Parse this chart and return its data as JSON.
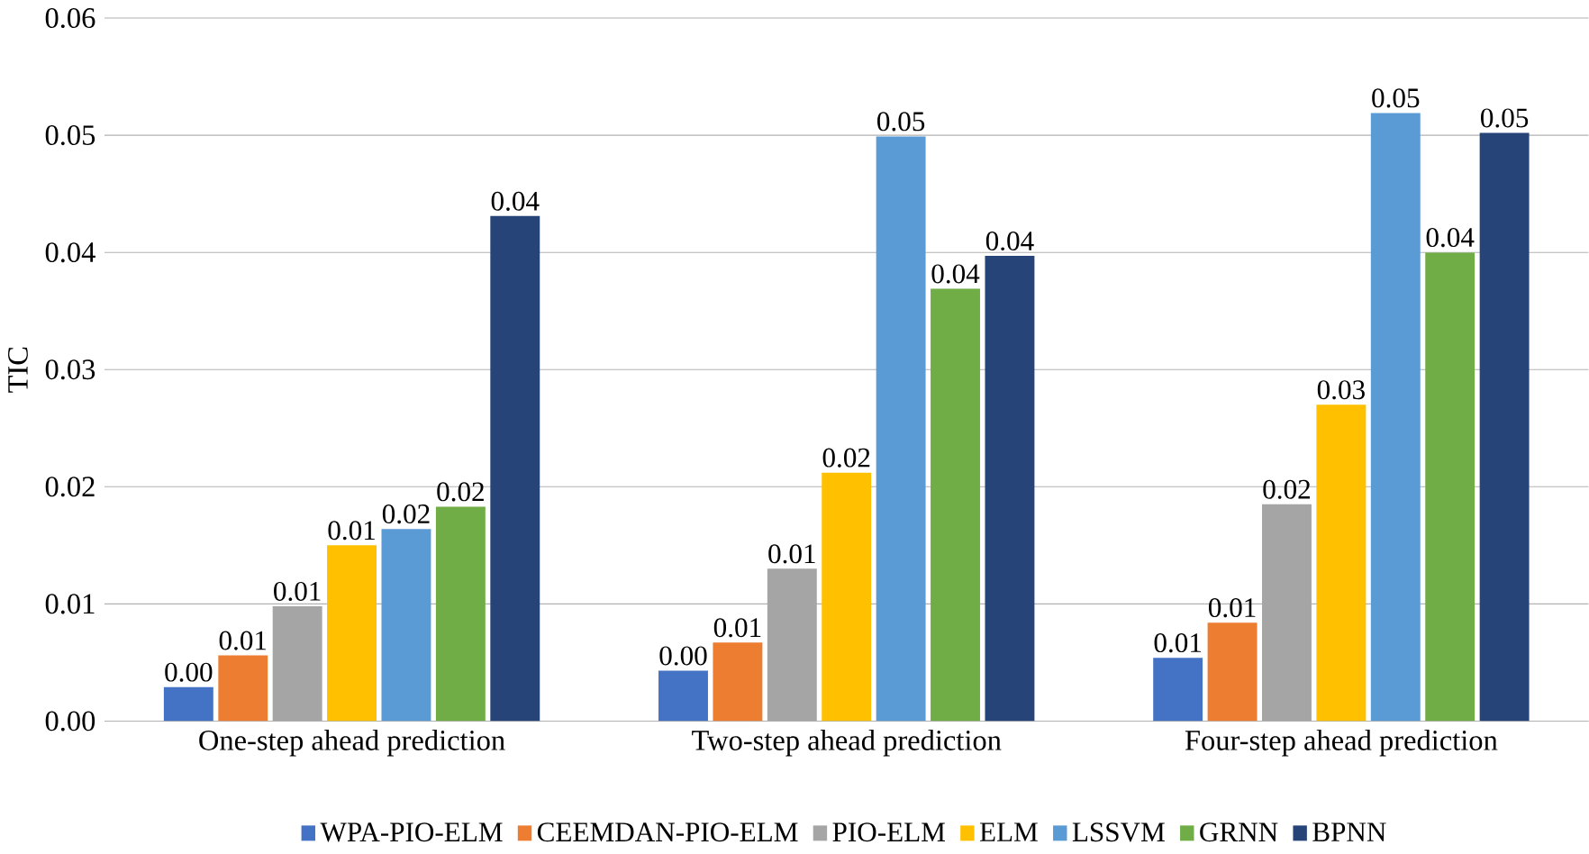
{
  "chart_data": {
    "type": "bar",
    "ylabel": "TIC",
    "categories": [
      "One-step ahead prediction",
      "Two-step ahead prediction",
      "Four-step ahead prediction"
    ],
    "ylim": [
      0,
      0.06
    ],
    "yticks": [
      {
        "value": 0,
        "label": "0.00"
      },
      {
        "value": 0.01,
        "label": "0.01"
      },
      {
        "value": 0.02,
        "label": "0.02"
      },
      {
        "value": 0.03,
        "label": "0.03"
      },
      {
        "value": 0.04,
        "label": "0.04"
      },
      {
        "value": 0.05,
        "label": "0.05"
      },
      {
        "value": 0.06,
        "label": "0.06"
      }
    ],
    "grid": "y",
    "legend": "bottom",
    "series": [
      {
        "name": "WPA-PIO-ELM",
        "color": "#4472c4",
        "values": [
          0.0029,
          0.0043,
          0.0054
        ],
        "value_labels": [
          "0.00",
          "0.00",
          "0.01"
        ]
      },
      {
        "name": "CEEMDAN-PIO-ELM",
        "color": "#ed7d31",
        "values": [
          0.0056,
          0.0067,
          0.0084
        ],
        "value_labels": [
          "0.01",
          "0.01",
          "0.01"
        ]
      },
      {
        "name": "PIO-ELM",
        "color": "#a5a5a5",
        "values": [
          0.0098,
          0.013,
          0.0185
        ],
        "value_labels": [
          "0.01",
          "0.01",
          "0.02"
        ]
      },
      {
        "name": "ELM",
        "color": "#ffc000",
        "values": [
          0.015,
          0.0212,
          0.027
        ],
        "value_labels": [
          "0.01",
          "0.02",
          "0.03"
        ]
      },
      {
        "name": "LSSVM",
        "color": "#5b9bd5",
        "values": [
          0.0164,
          0.0499,
          0.0519
        ],
        "value_labels": [
          "0.02",
          "0.05",
          "0.05"
        ]
      },
      {
        "name": "GRNN",
        "color": "#70ad47",
        "values": [
          0.0183,
          0.0369,
          0.04
        ],
        "value_labels": [
          "0.02",
          "0.04",
          "0.04"
        ]
      },
      {
        "name": "BPNN",
        "color": "#264478",
        "values": [
          0.0431,
          0.0397,
          0.0502
        ],
        "value_labels": [
          "0.04",
          "0.04",
          "0.05"
        ]
      }
    ]
  }
}
